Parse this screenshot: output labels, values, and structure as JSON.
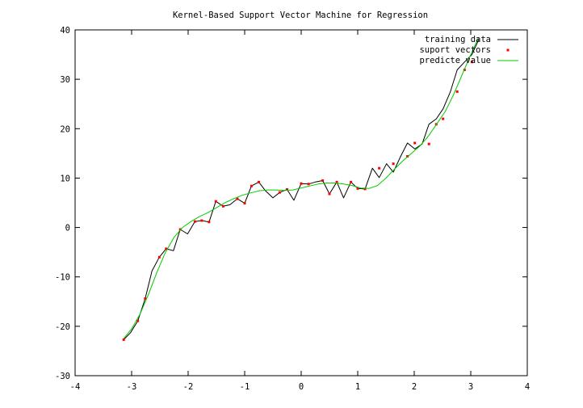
{
  "chart_data": {
    "type": "line",
    "title": "Kernel-Based Support Vector Machine for Regression",
    "xlabel": "",
    "ylabel": "",
    "xlim": [
      -4,
      4
    ],
    "ylim": [
      -30,
      40
    ],
    "x_ticks": [
      -4,
      -3,
      -2,
      -1,
      0,
      1,
      2,
      3,
      4
    ],
    "y_ticks": [
      -30,
      -20,
      -10,
      0,
      10,
      20,
      30,
      40
    ],
    "grid": false,
    "legend_position": "top-right",
    "series": [
      {
        "name": "training data",
        "style": "line",
        "color": "#000000",
        "x": [
          -3.14,
          -3.02,
          -2.89,
          -2.76,
          -2.64,
          -2.51,
          -2.39,
          -2.26,
          -2.14,
          -2.01,
          -1.88,
          -1.76,
          -1.63,
          -1.51,
          -1.38,
          -1.26,
          -1.13,
          -1.0,
          -0.88,
          -0.75,
          -0.63,
          -0.5,
          -0.38,
          -0.25,
          -0.13,
          0.0,
          0.13,
          0.25,
          0.38,
          0.5,
          0.63,
          0.75,
          0.88,
          1.0,
          1.13,
          1.26,
          1.38,
          1.51,
          1.63,
          1.76,
          1.88,
          2.01,
          2.14,
          2.26,
          2.39,
          2.51,
          2.64,
          2.76,
          2.89,
          3.02,
          3.14
        ],
        "y": [
          -22.7,
          -21.3,
          -18.9,
          -14.4,
          -8.8,
          -6.0,
          -4.3,
          -4.7,
          -0.4,
          -1.3,
          1.2,
          1.4,
          1.1,
          5.3,
          4.3,
          4.6,
          5.8,
          4.9,
          8.4,
          9.2,
          7.4,
          6.0,
          7.1,
          7.7,
          5.5,
          8.9,
          8.8,
          9.2,
          9.5,
          6.8,
          9.2,
          6.0,
          9.2,
          7.9,
          7.8,
          12.0,
          10.1,
          12.9,
          11.2,
          14.4,
          17.1,
          15.9,
          16.9,
          20.9,
          22.0,
          24.0,
          27.5,
          31.9,
          33.5,
          35.0,
          38.0
        ]
      },
      {
        "name": "suport vectors",
        "style": "points",
        "color": "#ff0000",
        "x": [
          -3.14,
          -2.89,
          -2.76,
          -2.51,
          -2.39,
          -2.14,
          -1.88,
          -1.76,
          -1.63,
          -1.51,
          -1.38,
          -1.13,
          -1.0,
          -0.88,
          -0.75,
          -0.38,
          -0.25,
          0.0,
          0.13,
          0.38,
          0.5,
          0.63,
          0.88,
          1.0,
          1.13,
          1.38,
          1.63,
          1.88,
          2.01,
          2.26,
          2.39,
          2.51,
          2.76,
          2.89,
          3.02
        ],
        "y": [
          -22.7,
          -18.9,
          -14.4,
          -6.0,
          -4.3,
          -0.4,
          1.2,
          1.4,
          1.1,
          5.3,
          4.3,
          5.8,
          4.9,
          8.4,
          9.2,
          7.1,
          7.7,
          8.9,
          8.8,
          9.5,
          6.8,
          9.2,
          9.2,
          7.9,
          7.8,
          12.0,
          12.9,
          14.4,
          17.1,
          16.9,
          20.9,
          22.0,
          27.5,
          31.9,
          33.5
        ]
      },
      {
        "name": "predicte value",
        "style": "line",
        "color": "#00cc00",
        "x": [
          -3.14,
          -3.0,
          -2.85,
          -2.7,
          -2.55,
          -2.4,
          -2.25,
          -2.1,
          -1.95,
          -1.8,
          -1.65,
          -1.5,
          -1.35,
          -1.2,
          -1.05,
          -0.9,
          -0.75,
          -0.6,
          -0.45,
          -0.3,
          -0.15,
          0.0,
          0.15,
          0.3,
          0.45,
          0.6,
          0.75,
          0.9,
          1.05,
          1.2,
          1.35,
          1.5,
          1.65,
          1.8,
          1.95,
          2.1,
          2.25,
          2.4,
          2.55,
          2.7,
          2.85,
          3.0,
          3.14
        ],
        "y": [
          -22.5,
          -20.5,
          -17.5,
          -13.5,
          -9.0,
          -5.0,
          -2.0,
          0.0,
          1.2,
          2.2,
          3.0,
          4.0,
          5.0,
          5.8,
          6.5,
          7.0,
          7.4,
          7.6,
          7.6,
          7.5,
          7.6,
          8.0,
          8.4,
          8.8,
          9.0,
          9.0,
          8.8,
          8.5,
          8.0,
          7.9,
          8.5,
          10.0,
          11.8,
          13.5,
          15.0,
          16.5,
          18.5,
          21.0,
          23.5,
          27.0,
          31.0,
          35.0,
          38.5
        ]
      }
    ]
  }
}
